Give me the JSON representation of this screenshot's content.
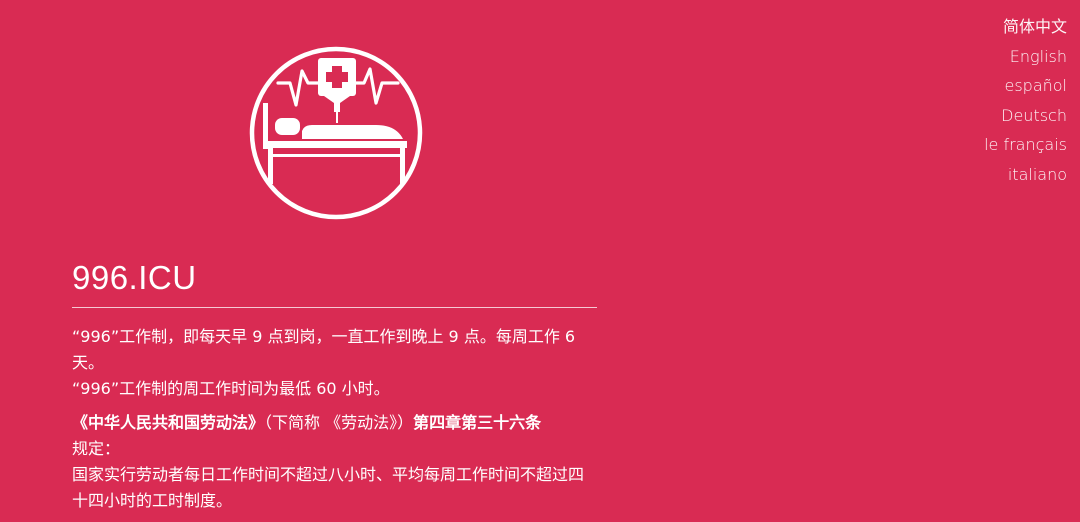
{
  "site": {
    "title": "996.ICU",
    "logo_icon": "icu-bed-icon"
  },
  "languages": [
    {
      "label": "简体中文",
      "active": true
    },
    {
      "label": "English",
      "active": false
    },
    {
      "label": "español",
      "active": false
    },
    {
      "label": "Deutsch",
      "active": false
    },
    {
      "label": "le français",
      "active": false
    },
    {
      "label": "italiano",
      "active": false
    }
  ],
  "content": {
    "p1_line1": "“996”工作制，即每天早 9 点到岗，一直工作到晚上 9 点。每周工作 6 天。",
    "p1_line2": "“996”工作制的周工作时间为最低 60 小时。",
    "law_title": "《中华人民共和国劳动法》",
    "law_abbr": "（下简称 《劳动法》）",
    "law_article": "第四章第三十六条",
    "law_suffix": "规定：",
    "law_text": "国家实行劳动者每日工作时间不超过八小时、平均每周工作时间不超过四十四小时的工时制度。"
  },
  "colors": {
    "background": "#d92b53",
    "foreground": "#ffffff"
  }
}
